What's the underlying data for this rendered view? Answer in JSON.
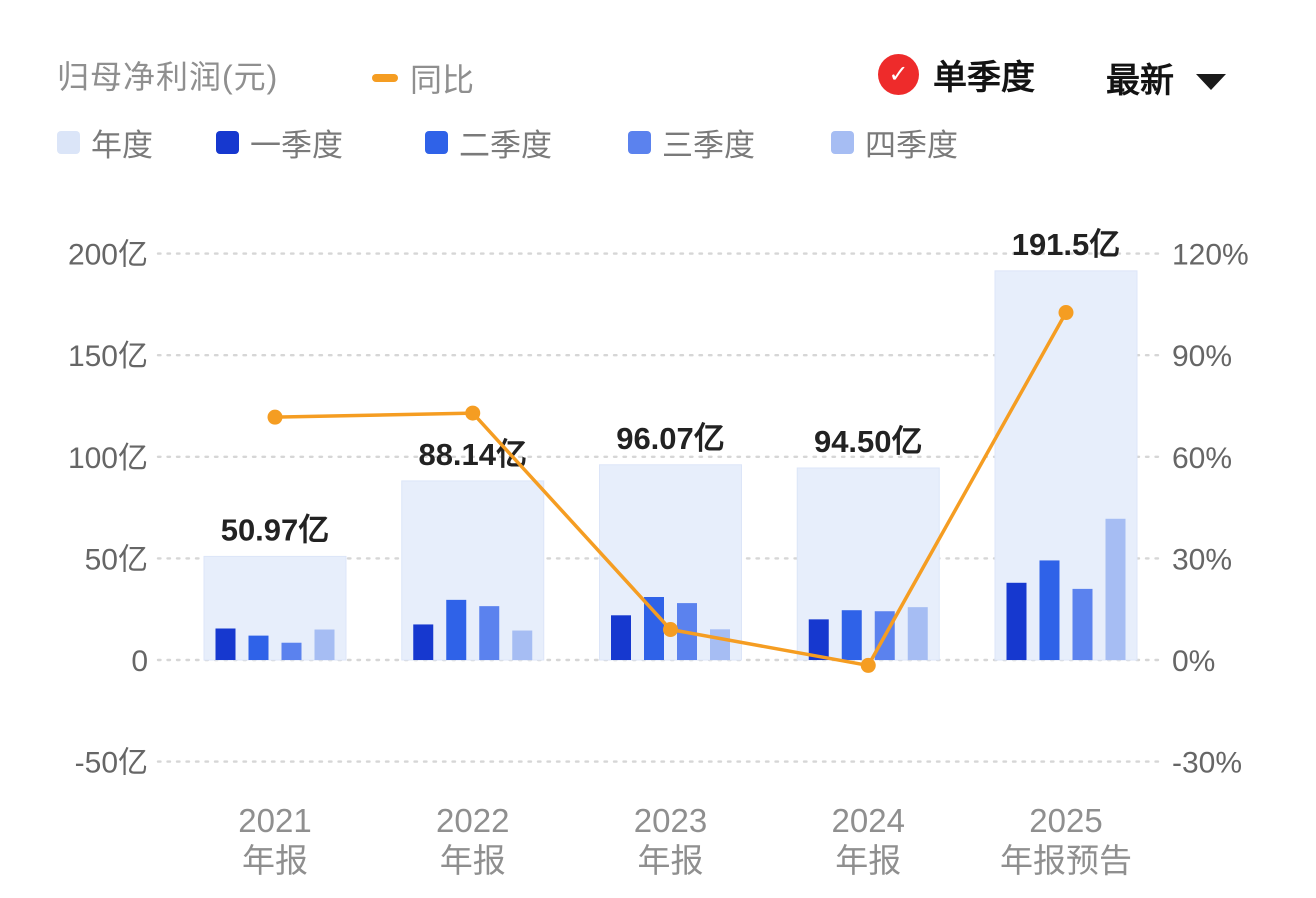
{
  "header": {
    "title": "归母净利润(元)",
    "yoy_legend": "同比",
    "mode_label": "单季度",
    "period_label": "最新"
  },
  "legend": {
    "items": [
      {
        "label": "年度",
        "color": "#dbe5f8"
      },
      {
        "label": "一季度",
        "color": "#1638cf"
      },
      {
        "label": "二季度",
        "color": "#2f62e8"
      },
      {
        "label": "三季度",
        "color": "#5b82ee"
      },
      {
        "label": "四季度",
        "color": "#a6bdf3"
      }
    ]
  },
  "chart_data": {
    "type": "bar",
    "title": "归母净利润(元)",
    "legend_position": "top",
    "grid": true,
    "unit": "亿",
    "categories": [
      {
        "line1": "2021",
        "line2": "年报"
      },
      {
        "line1": "2022",
        "line2": "年报"
      },
      {
        "line1": "2023",
        "line2": "年报"
      },
      {
        "line1": "2024",
        "line2": "年报"
      },
      {
        "line1": "2025",
        "line2": "年报预告"
      }
    ],
    "annual": {
      "name": "年度",
      "color": "#e7eefb",
      "border_color": "#dce5f8",
      "values": [
        50.97,
        88.14,
        96.07,
        94.5,
        191.5
      ],
      "labels": [
        "50.97亿",
        "88.14亿",
        "96.07亿",
        "94.50亿",
        "191.5亿"
      ]
    },
    "quarters": [
      {
        "name": "一季度",
        "color": "#1638cf",
        "values": [
          15.5,
          17.5,
          22.0,
          20.0,
          38.0
        ]
      },
      {
        "name": "二季度",
        "color": "#2f62e8",
        "values": [
          12.0,
          29.6,
          31.0,
          24.5,
          49.0
        ]
      },
      {
        "name": "三季度",
        "color": "#5b82ee",
        "values": [
          8.5,
          26.5,
          28.0,
          24.0,
          35.0
        ]
      },
      {
        "name": "四季度",
        "color": "#a6bdf3",
        "values": [
          15.0,
          14.5,
          15.1,
          26.0,
          69.5
        ]
      }
    ],
    "yoy": {
      "name": "同比",
      "color": "#f59d22",
      "values_pct": [
        71.7,
        72.9,
        9.0,
        -1.6,
        102.6
      ]
    },
    "y_axis_left": {
      "ticks": [
        {
          "value": 200,
          "label": "200亿"
        },
        {
          "value": 150,
          "label": "150亿"
        },
        {
          "value": 100,
          "label": "100亿"
        },
        {
          "value": 50,
          "label": "50亿"
        },
        {
          "value": 0,
          "label": "0"
        },
        {
          "value": -50,
          "label": "-50亿"
        }
      ]
    },
    "y_axis_right": {
      "ticks": [
        {
          "value": 120,
          "label": "120%"
        },
        {
          "value": 90,
          "label": "90%"
        },
        {
          "value": 60,
          "label": "60%"
        },
        {
          "value": 30,
          "label": "30%"
        },
        {
          "value": 0,
          "label": "0%"
        },
        {
          "value": -30,
          "label": "-30%"
        }
      ]
    }
  }
}
